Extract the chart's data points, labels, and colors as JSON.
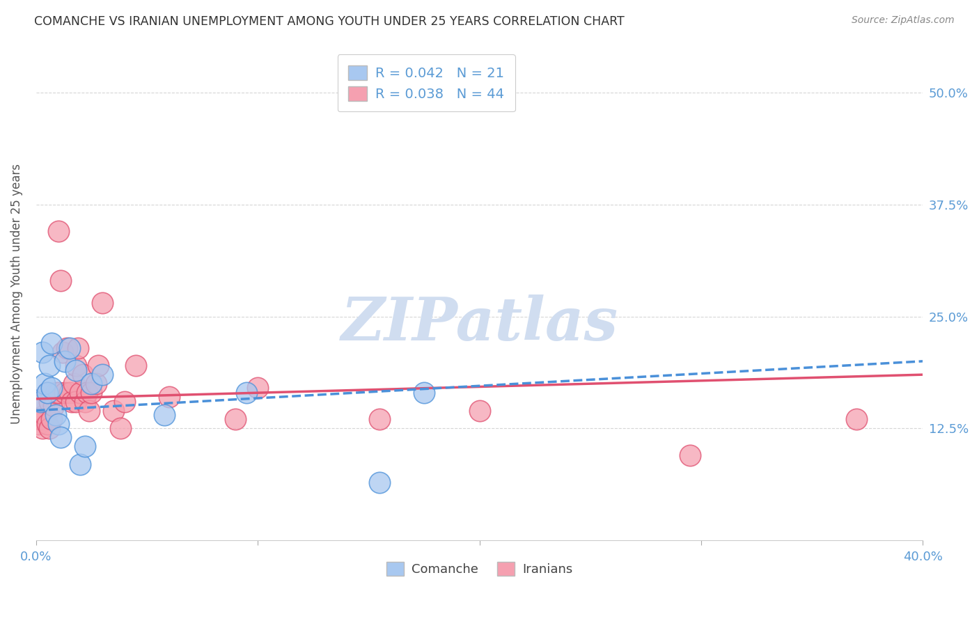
{
  "title": "COMANCHE VS IRANIAN UNEMPLOYMENT AMONG YOUTH UNDER 25 YEARS CORRELATION CHART",
  "source": "Source: ZipAtlas.com",
  "ylabel": "Unemployment Among Youth under 25 years",
  "xlim": [
    0.0,
    0.4
  ],
  "ylim": [
    0.0,
    0.55
  ],
  "yticks": [
    0.125,
    0.25,
    0.375,
    0.5
  ],
  "ytick_labels": [
    "12.5%",
    "25.0%",
    "37.5%",
    "50.0%"
  ],
  "xticks": [
    0.0,
    0.1,
    0.2,
    0.3,
    0.4
  ],
  "xtick_labels": [
    "0.0%",
    "",
    "",
    "",
    "40.0%"
  ],
  "comanche": {
    "R": 0.042,
    "N": 21,
    "color": "#a8c8f0",
    "line_color": "#4a90d9",
    "x": [
      0.002,
      0.003,
      0.004,
      0.005,
      0.006,
      0.007,
      0.007,
      0.009,
      0.01,
      0.011,
      0.013,
      0.015,
      0.018,
      0.02,
      0.022,
      0.025,
      0.03,
      0.058,
      0.095,
      0.155,
      0.175
    ],
    "y": [
      0.155,
      0.21,
      0.175,
      0.165,
      0.195,
      0.22,
      0.17,
      0.14,
      0.13,
      0.115,
      0.2,
      0.215,
      0.19,
      0.085,
      0.105,
      0.175,
      0.185,
      0.14,
      0.165,
      0.065,
      0.165
    ]
  },
  "iranians": {
    "R": 0.038,
    "N": 44,
    "color": "#f5a0b0",
    "line_color": "#e05070",
    "x": [
      0.001,
      0.002,
      0.003,
      0.004,
      0.004,
      0.005,
      0.005,
      0.006,
      0.006,
      0.007,
      0.008,
      0.009,
      0.01,
      0.01,
      0.011,
      0.012,
      0.013,
      0.014,
      0.015,
      0.016,
      0.017,
      0.018,
      0.018,
      0.019,
      0.02,
      0.021,
      0.022,
      0.023,
      0.024,
      0.025,
      0.027,
      0.028,
      0.03,
      0.035,
      0.038,
      0.04,
      0.045,
      0.06,
      0.09,
      0.1,
      0.155,
      0.2,
      0.295,
      0.37
    ],
    "y": [
      0.13,
      0.135,
      0.125,
      0.14,
      0.155,
      0.13,
      0.165,
      0.125,
      0.155,
      0.135,
      0.15,
      0.165,
      0.165,
      0.345,
      0.29,
      0.21,
      0.165,
      0.215,
      0.165,
      0.155,
      0.175,
      0.155,
      0.195,
      0.215,
      0.165,
      0.185,
      0.155,
      0.165,
      0.145,
      0.165,
      0.175,
      0.195,
      0.265,
      0.145,
      0.125,
      0.155,
      0.195,
      0.16,
      0.135,
      0.17,
      0.135,
      0.145,
      0.095,
      0.135
    ]
  },
  "background_color": "#ffffff",
  "grid_color": "#cccccc",
  "title_color": "#333333",
  "axis_label_color": "#555555",
  "tick_color": "#5b9bd5",
  "watermark_text": "ZIPatlas",
  "watermark_color": "#d0ddf0"
}
